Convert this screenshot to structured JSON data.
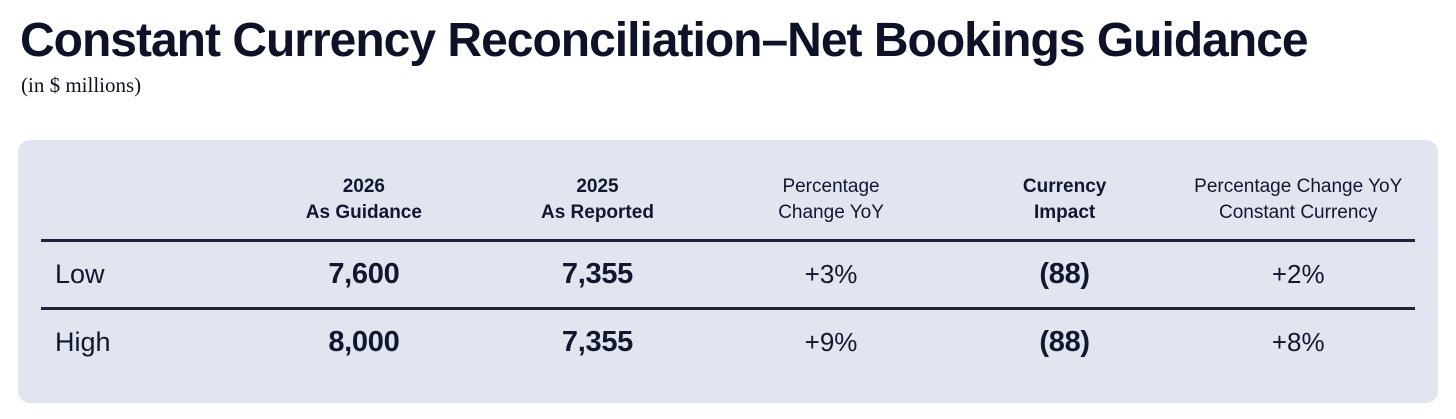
{
  "colors": {
    "page_bg": "#ffffff",
    "panel_bg": "#e0e5f0",
    "text": "#12172e",
    "title_text": "#0d1228",
    "rule": "#1c2238"
  },
  "header": {
    "title": "Constant Currency Reconciliation–Net Bookings Guidance",
    "subtitle": "(in $ millions)"
  },
  "table": {
    "columns": [
      {
        "line1": "",
        "line2": ""
      },
      {
        "line1": "2026",
        "line2": "As Guidance"
      },
      {
        "line1": "2025",
        "line2": "As Reported"
      },
      {
        "line1": "Percentage",
        "line2": "Change YoY"
      },
      {
        "line1": "Currency",
        "line2": "Impact"
      },
      {
        "line1": "Percentage Change YoY",
        "line2": "Constant Currency"
      }
    ],
    "rows": [
      {
        "label": "Low",
        "values": [
          "7,600",
          "7,355",
          "+3%",
          "(88)",
          "+2%"
        ]
      },
      {
        "label": "High",
        "values": [
          "8,000",
          "7,355",
          "+9%",
          "(88)",
          "+8%"
        ]
      }
    ]
  },
  "chart_data": {
    "type": "table",
    "title": "Constant Currency Reconciliation–Net Bookings Guidance",
    "unit": "in $ millions",
    "columns": [
      "",
      "2026 As Guidance",
      "2025 As Reported",
      "Percentage Change YoY",
      "Currency Impact",
      "Percentage Change YoY Constant Currency"
    ],
    "rows": [
      [
        "Low",
        7600,
        7355,
        "+3%",
        -88,
        "+2%"
      ],
      [
        "High",
        8000,
        7355,
        "+9%",
        -88,
        "+8%"
      ]
    ]
  }
}
